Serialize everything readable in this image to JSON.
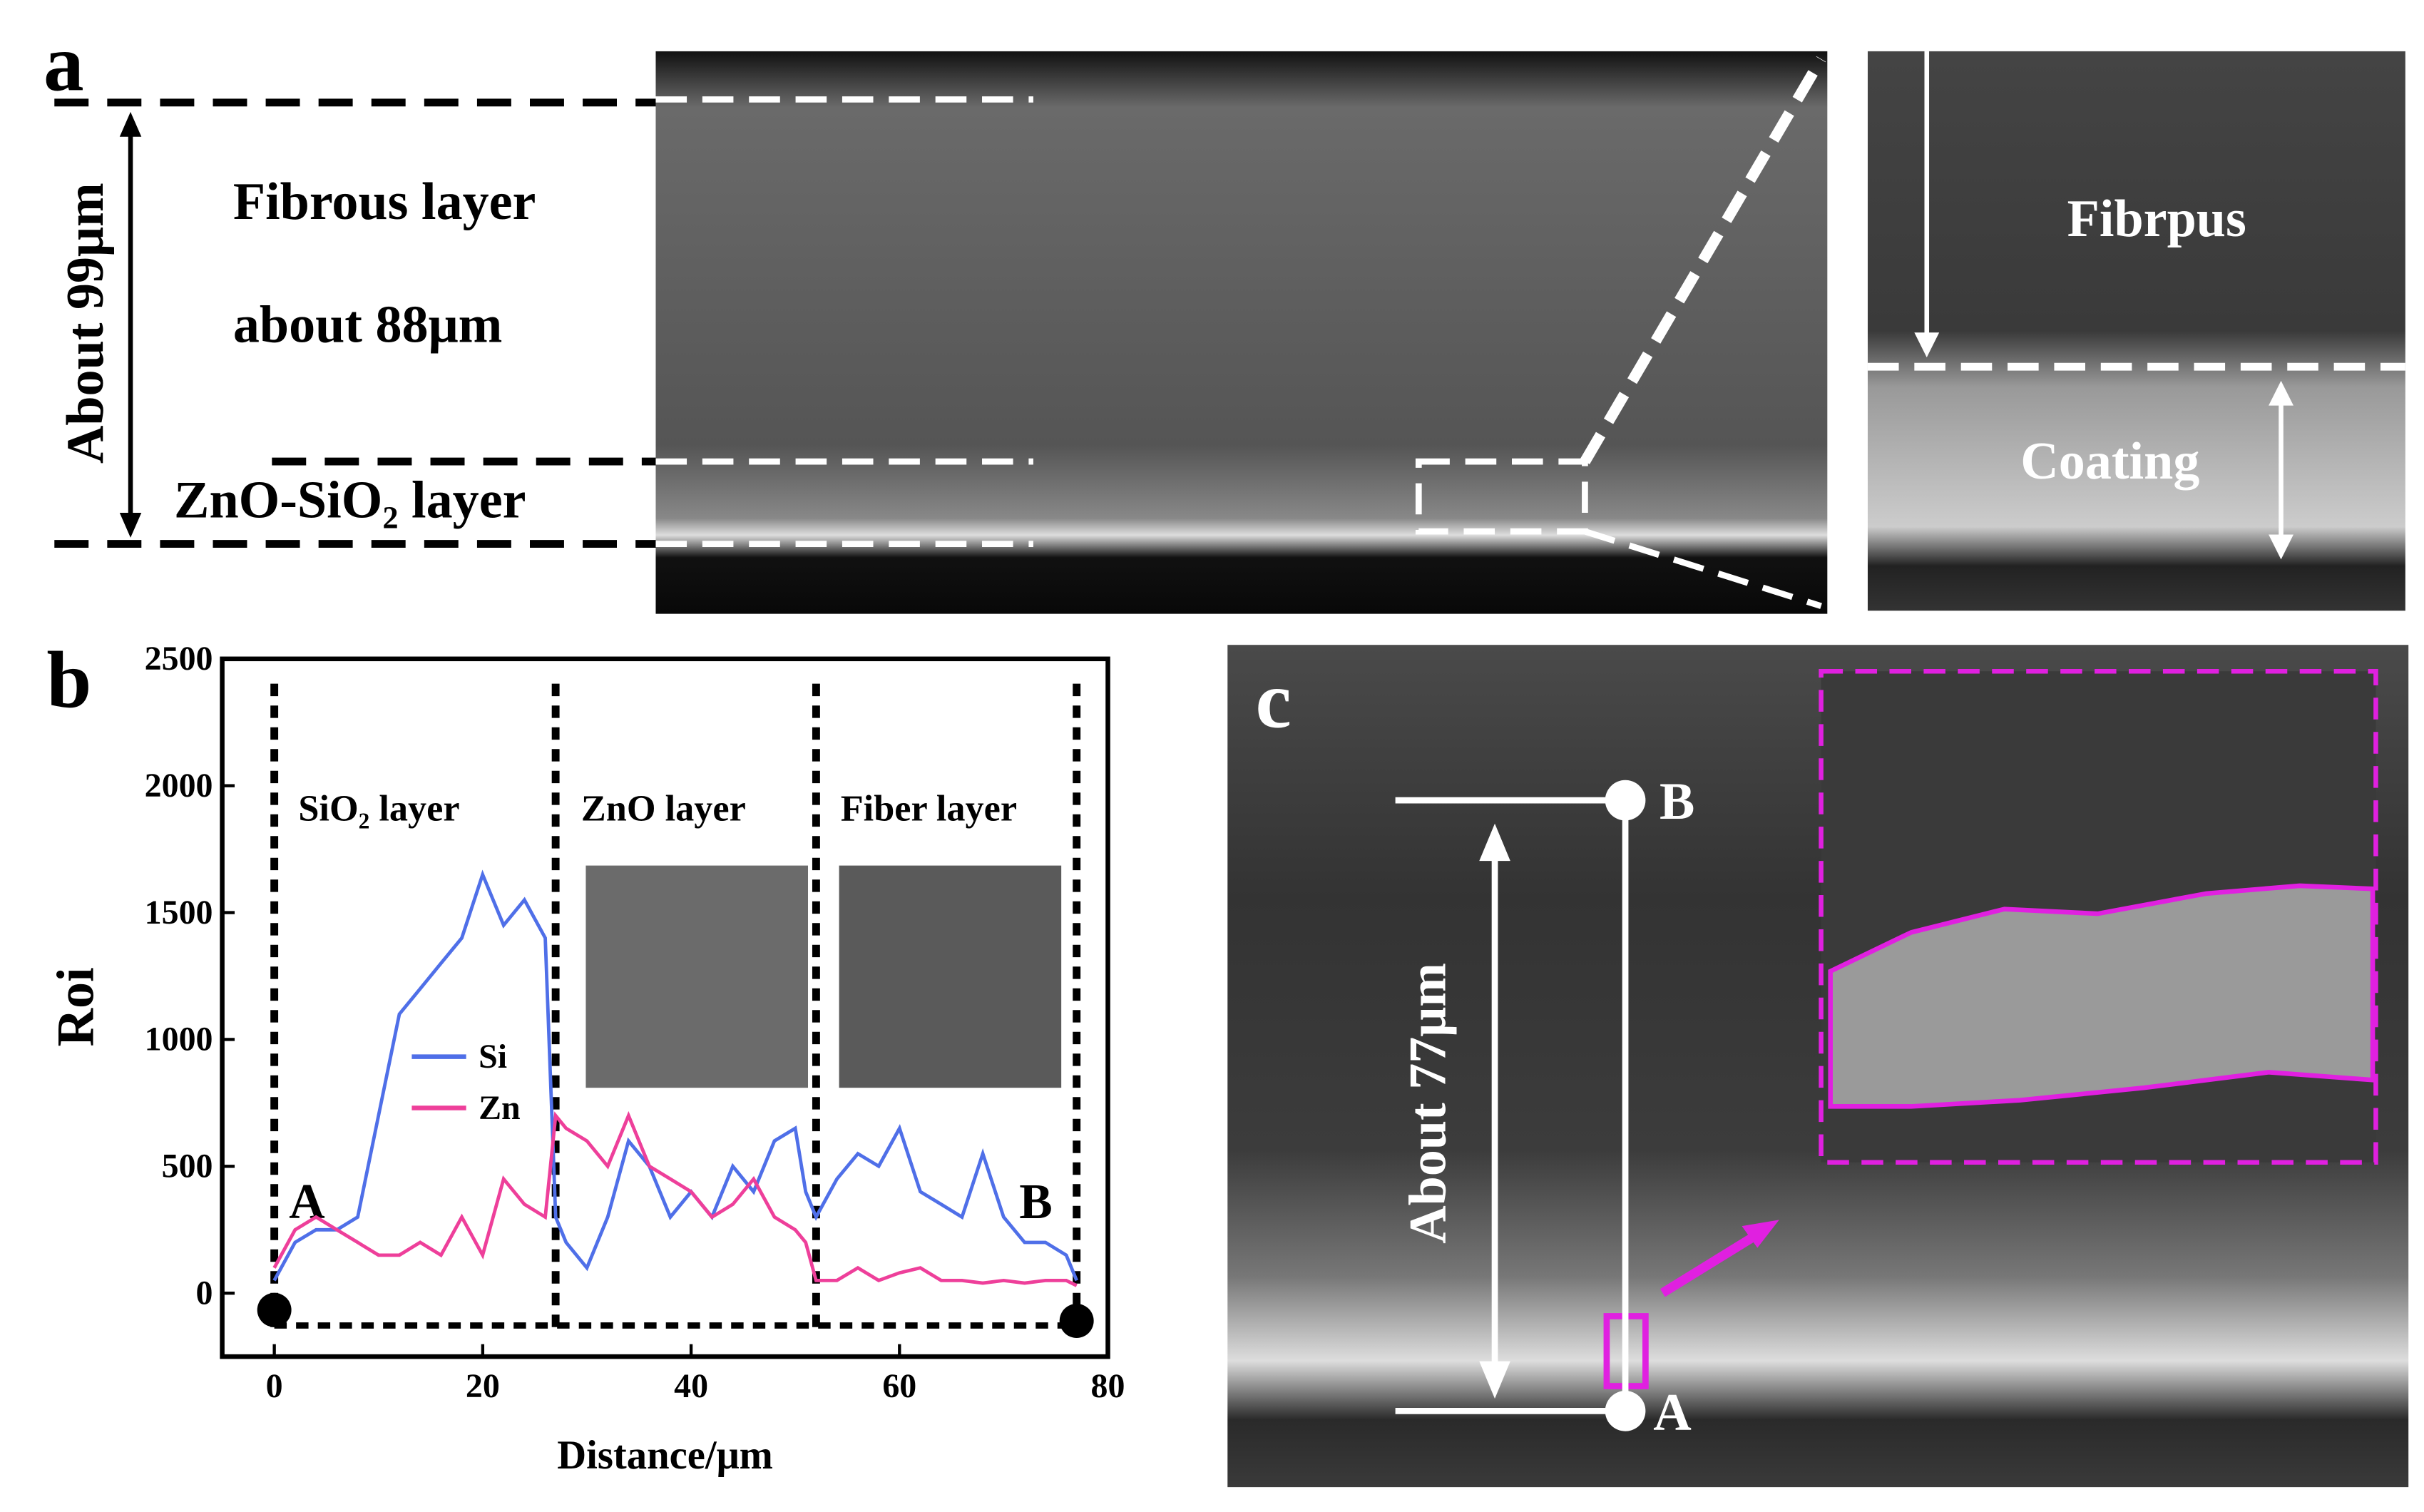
{
  "panel_a": {
    "label": "a",
    "total": "About 99μm",
    "fibrous_1": "Fibrous layer",
    "fibrous_2": "about  88μm",
    "coating": "ZnO-SiO₂ layer",
    "inset_top": "Fibrpus",
    "inset_bottom": "Coating"
  },
  "chart_data": {
    "type": "line",
    "panel_label": "b",
    "x_label": "Distance/μm",
    "y_label": "Roi",
    "annotations": [
      "SiO₂ layer",
      "ZnO layer",
      "Fiber layer",
      "A",
      "B"
    ],
    "xlim": [
      -5,
      80
    ],
    "ylim": [
      -250,
      2500
    ],
    "xticks": [
      0,
      20,
      40,
      60,
      80
    ],
    "yticks": [
      0,
      500,
      1000,
      1500,
      2000,
      2500
    ],
    "x": [
      0,
      2,
      4,
      6,
      8,
      10,
      12,
      14,
      16,
      18,
      20,
      22,
      24,
      26,
      27,
      28,
      30,
      32,
      34,
      36,
      38,
      40,
      42,
      44,
      46,
      48,
      50,
      51,
      52,
      54,
      56,
      58,
      60,
      62,
      64,
      66,
      68,
      70,
      72,
      74,
      76,
      77
    ],
    "series": [
      {
        "name": "Si",
        "color": "#4f6fe8",
        "values": [
          50,
          200,
          250,
          250,
          300,
          700,
          1100,
          1200,
          1300,
          1400,
          1650,
          1450,
          1550,
          1400,
          300,
          200,
          100,
          300,
          600,
          500,
          300,
          400,
          300,
          500,
          400,
          600,
          650,
          400,
          300,
          450,
          550,
          500,
          650,
          400,
          350,
          300,
          550,
          300,
          200,
          200,
          150,
          50
        ]
      },
      {
        "name": "Zn",
        "color": "#ee3f9a",
        "values": [
          100,
          250,
          300,
          250,
          200,
          150,
          150,
          200,
          150,
          300,
          150,
          450,
          350,
          300,
          700,
          650,
          600,
          500,
          700,
          500,
          450,
          400,
          300,
          350,
          450,
          300,
          250,
          200,
          50,
          50,
          100,
          50,
          80,
          100,
          50,
          50,
          40,
          50,
          40,
          50,
          50,
          30
        ]
      }
    ]
  },
  "panel_c": {
    "label": "c",
    "length": "About 77μm",
    "top": "B",
    "bottom": "A"
  }
}
